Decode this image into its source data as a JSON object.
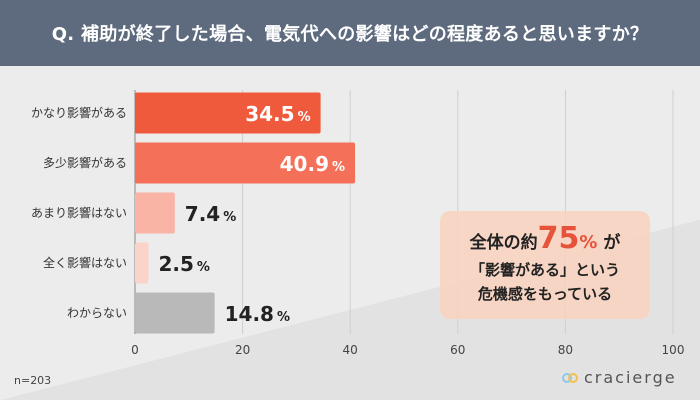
{
  "header": {
    "title": "Q. 補助が終了した場合、電気代への影響はどの程度あると思いますか？"
  },
  "chart_data": {
    "type": "bar",
    "orientation": "horizontal",
    "categories": [
      "かなり影響がある",
      "多少影響がある",
      "あまり影響はない",
      "全く影響はない",
      "わからない"
    ],
    "values": [
      34.5,
      40.9,
      7.4,
      2.5,
      14.8
    ],
    "value_labels": [
      "34.5",
      "40.9",
      "7.4",
      "2.5",
      "14.8"
    ],
    "unit": "%",
    "xlim": [
      0,
      100
    ],
    "xticks": [
      "0",
      "20",
      "40",
      "60",
      "80",
      "100"
    ],
    "colors": [
      "#f05a3c",
      "#f47058",
      "#f9b4a5",
      "#fbd3c9",
      "#b9b9b9"
    ],
    "grid": true
  },
  "callout": {
    "prefix": "全体の約",
    "number": "75",
    "pct": "%",
    "suffix": "が",
    "line2": "「影響がある」という",
    "line3": "危機感をもっている"
  },
  "footer": {
    "sample": "n=203",
    "brand": "cracierge"
  }
}
